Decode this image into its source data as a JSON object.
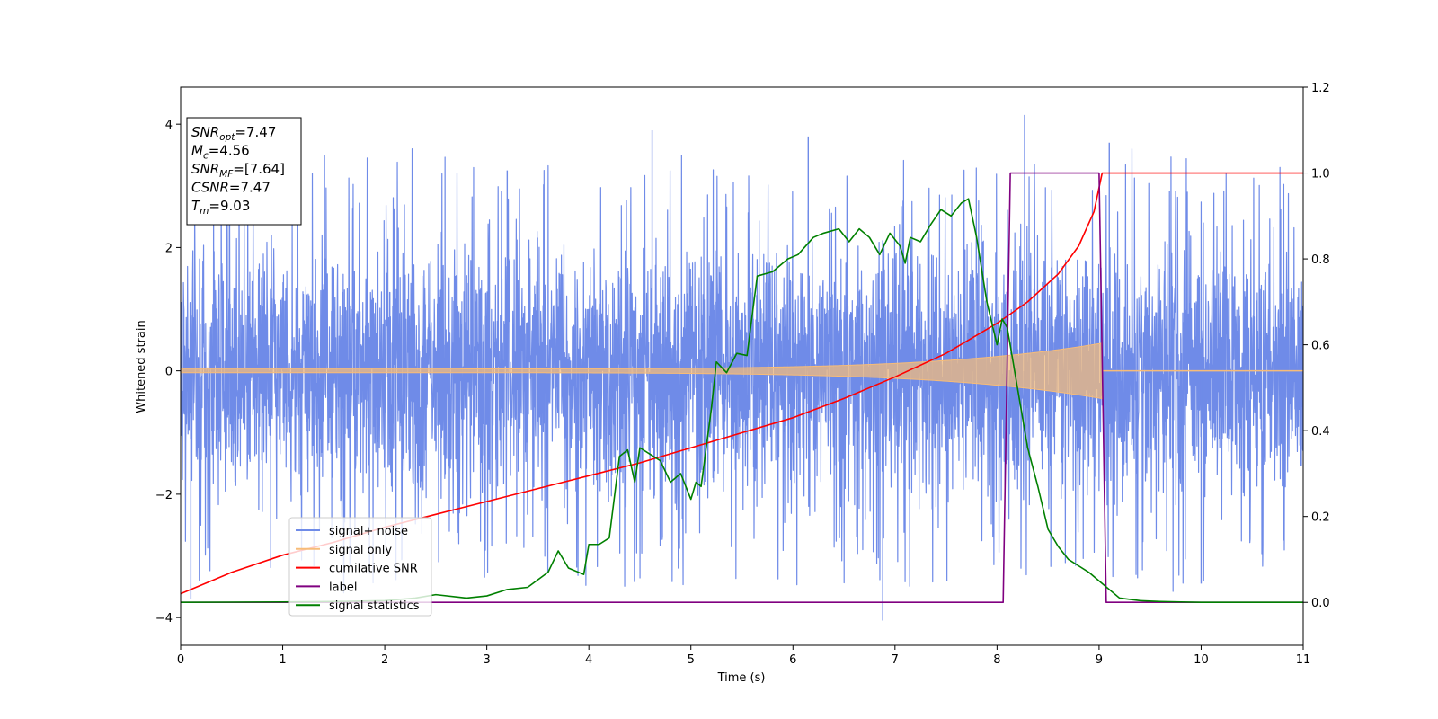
{
  "chart_data": {
    "type": "line",
    "xlabel": "Time (s)",
    "ylabel_left": "Whitened strain",
    "xlim": [
      0,
      11
    ],
    "ylim_left": [
      -4.45,
      4.6
    ],
    "ylim_right": [
      -0.1,
      1.2
    ],
    "x_ticks": [
      0,
      1,
      2,
      3,
      4,
      5,
      6,
      7,
      8,
      9,
      10,
      11
    ],
    "y_left_ticks": [
      -4,
      -2,
      0,
      2,
      4
    ],
    "y_right_ticks": [
      "0.0",
      "0.2",
      "0.4",
      "0.6",
      "0.8",
      "1.0",
      "1.2"
    ],
    "grid": false,
    "legend_position": "lower-left",
    "annotation": [
      {
        "base": "SNR",
        "sub": "opt",
        "value": "=7.47"
      },
      {
        "base": "M",
        "sub": "c",
        "value": "=4.56"
      },
      {
        "base": "SNR",
        "sub": "MF",
        "value": "=[7.64]"
      },
      {
        "base": "CSNR",
        "sub": "",
        "value": "=7.47"
      },
      {
        "base": "T",
        "sub": "m",
        "value": "=9.03"
      }
    ],
    "series": [
      {
        "name": "signal+ noise",
        "axis": "left",
        "color": "#6f8be8",
        "approx_std": 1.0,
        "spike_max": 4.15,
        "spike_min": -4.05
      },
      {
        "name": "signal only",
        "axis": "left",
        "color": "#f7bc78",
        "start_amplitude": 0.03,
        "end_amplitude": 0.45,
        "x_end": 9.03
      },
      {
        "name": "cumilative SNR",
        "axis": "right",
        "color": "#ff0000",
        "x": [
          0,
          0.5,
          1,
          1.5,
          2,
          2.5,
          3,
          3.5,
          4,
          4.5,
          5,
          5.5,
          6,
          6.5,
          7,
          7.5,
          8,
          8.3,
          8.6,
          8.8,
          8.95,
          9.03,
          11
        ],
        "y": [
          0.02,
          0.07,
          0.11,
          0.14,
          0.175,
          0.205,
          0.235,
          0.265,
          0.295,
          0.325,
          0.36,
          0.395,
          0.43,
          0.475,
          0.525,
          0.58,
          0.65,
          0.7,
          0.765,
          0.83,
          0.91,
          1.0,
          1.0
        ]
      },
      {
        "name": "label",
        "axis": "right",
        "color": "#800080",
        "x": [
          0,
          8.06,
          8.13,
          9.0,
          9.07,
          11
        ],
        "y": [
          0,
          0,
          1.0,
          1.0,
          0,
          0
        ]
      },
      {
        "name": "signal statistics",
        "axis": "right",
        "color": "#008000",
        "x": [
          0,
          1,
          1.5,
          2,
          2.3,
          2.5,
          2.8,
          3.0,
          3.2,
          3.4,
          3.6,
          3.7,
          3.8,
          3.95,
          4.0,
          4.1,
          4.2,
          4.3,
          4.38,
          4.45,
          4.5,
          4.6,
          4.7,
          4.8,
          4.9,
          5.0,
          5.05,
          5.1,
          5.2,
          5.25,
          5.35,
          5.45,
          5.55,
          5.65,
          5.8,
          5.95,
          6.05,
          6.2,
          6.3,
          6.45,
          6.55,
          6.65,
          6.75,
          6.85,
          6.95,
          7.05,
          7.1,
          7.15,
          7.25,
          7.35,
          7.45,
          7.55,
          7.65,
          7.72,
          7.8,
          7.9,
          8.0,
          8.05,
          8.1,
          8.2,
          8.3,
          8.4,
          8.5,
          8.6,
          8.7,
          8.8,
          8.9,
          9.0,
          9.2,
          9.4,
          9.6,
          9.8,
          10.0,
          10.5,
          11
        ],
        "y": [
          0.0,
          0.001,
          0.002,
          0.004,
          0.01,
          0.018,
          0.01,
          0.015,
          0.03,
          0.035,
          0.07,
          0.12,
          0.08,
          0.065,
          0.135,
          0.135,
          0.15,
          0.34,
          0.355,
          0.28,
          0.36,
          0.345,
          0.33,
          0.28,
          0.3,
          0.24,
          0.28,
          0.27,
          0.45,
          0.56,
          0.535,
          0.58,
          0.575,
          0.76,
          0.77,
          0.8,
          0.81,
          0.85,
          0.86,
          0.87,
          0.84,
          0.87,
          0.85,
          0.81,
          0.86,
          0.83,
          0.79,
          0.85,
          0.84,
          0.88,
          0.915,
          0.9,
          0.93,
          0.94,
          0.85,
          0.7,
          0.6,
          0.66,
          0.64,
          0.5,
          0.36,
          0.27,
          0.17,
          0.13,
          0.1,
          0.085,
          0.07,
          0.05,
          0.01,
          0.004,
          0.002,
          0.001,
          0.0,
          0.0,
          0.0
        ]
      }
    ]
  }
}
